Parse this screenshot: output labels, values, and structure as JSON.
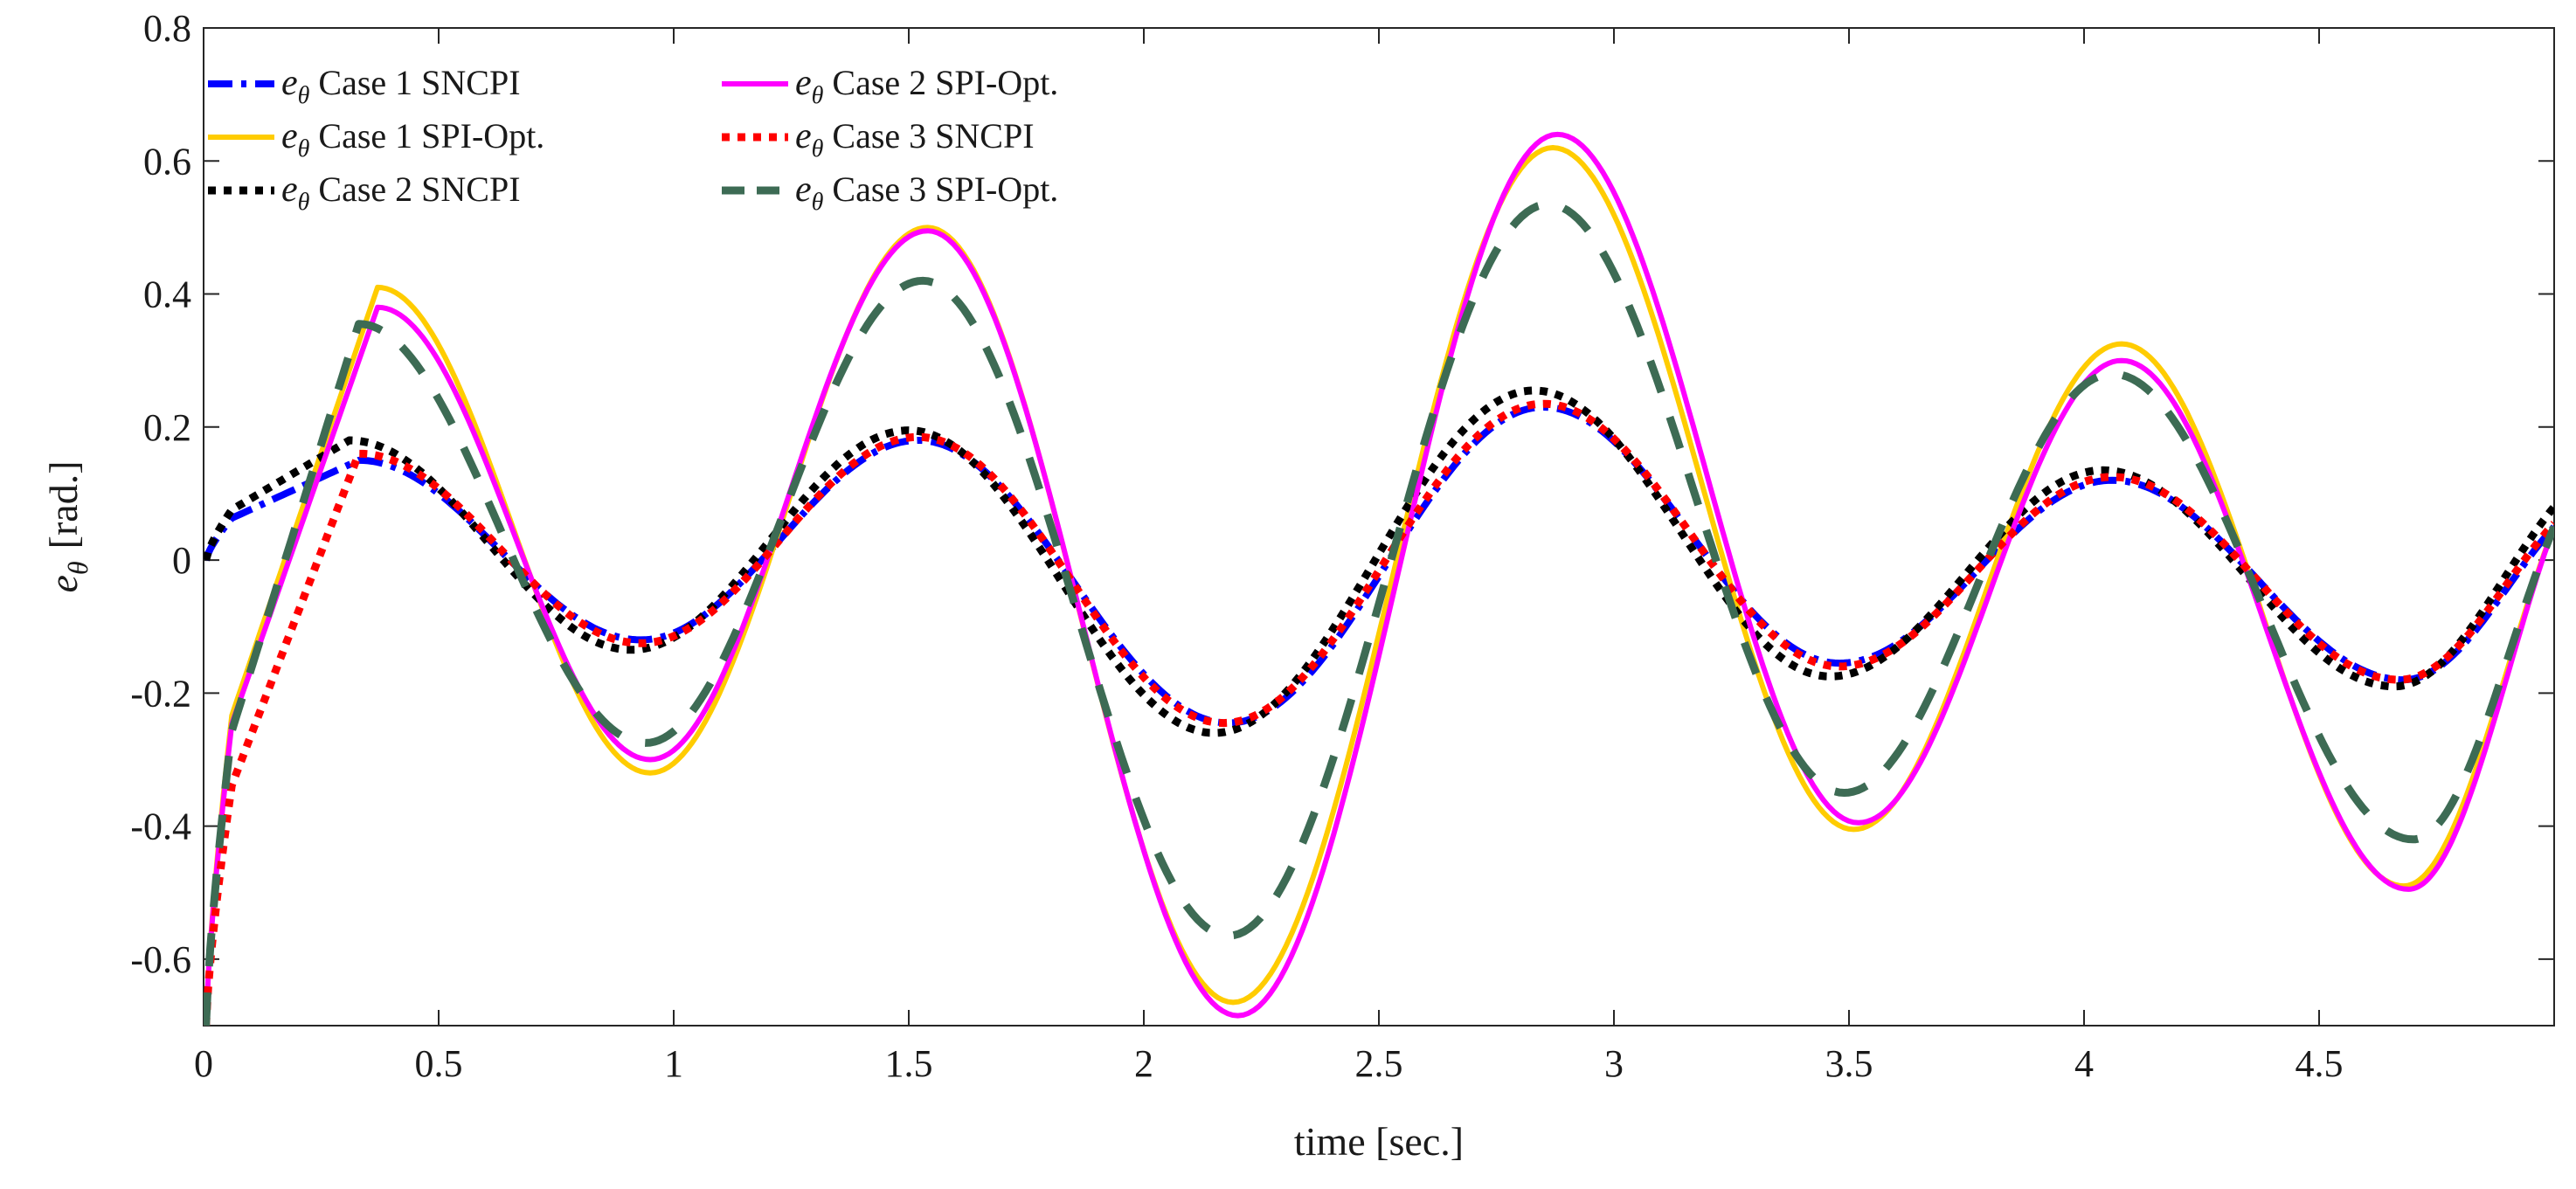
{
  "chart_data": {
    "type": "line",
    "title": "",
    "xlabel": "time  [sec.]",
    "ylabel": {
      "symbol": "e",
      "subscript": "θ",
      "unit": "[rad.]"
    },
    "xlim": [
      0,
      5
    ],
    "ylim": [
      -0.7,
      0.8
    ],
    "xticks": [
      0,
      0.5,
      1,
      1.5,
      2,
      2.5,
      3,
      3.5,
      4,
      4.5
    ],
    "xtick_labels": [
      "0",
      "0.5",
      "1",
      "1.5",
      "2",
      "2.5",
      "3",
      "3.5",
      "4",
      "4.5"
    ],
    "yticks": [
      -0.6,
      -0.4,
      -0.2,
      0,
      0.2,
      0.4,
      0.6,
      0.8
    ],
    "ytick_labels": [
      "-0.6",
      "-0.4",
      "-0.2",
      "0",
      "0.2",
      "0.4",
      "0.6",
      "0.8"
    ],
    "grid": false,
    "legend_position": "top-left",
    "legend_symbol": {
      "base": "e",
      "subscript": "θ"
    },
    "series": [
      {
        "name": "Case 1 SNCPI",
        "color": "#0000ff",
        "style": "dash-dot",
        "initial": 0.0,
        "points": [
          [
            0.33,
            0.15
          ],
          [
            0.93,
            -0.12
          ],
          [
            1.52,
            0.18
          ],
          [
            2.18,
            -0.245
          ],
          [
            2.85,
            0.23
          ],
          [
            3.48,
            -0.155
          ],
          [
            4.06,
            0.12
          ],
          [
            4.68,
            -0.18
          ],
          [
            5.0,
            0.05
          ]
        ]
      },
      {
        "name": "Case 1 SPI-Opt.",
        "color": "#ffcc00",
        "style": "solid",
        "initial": -0.7,
        "points": [
          [
            0.37,
            0.41
          ],
          [
            0.95,
            -0.32
          ],
          [
            1.54,
            0.5
          ],
          [
            2.19,
            -0.665
          ],
          [
            2.87,
            0.62
          ],
          [
            3.51,
            -0.405
          ],
          [
            4.08,
            0.325
          ],
          [
            4.68,
            -0.49
          ],
          [
            5.0,
            0.05
          ]
        ]
      },
      {
        "name": "Case 2 SNCPI",
        "color": "#000000",
        "style": "dotted",
        "initial": 0.0,
        "points": [
          [
            0.31,
            0.18
          ],
          [
            0.91,
            -0.135
          ],
          [
            1.5,
            0.195
          ],
          [
            2.15,
            -0.26
          ],
          [
            2.83,
            0.255
          ],
          [
            3.46,
            -0.175
          ],
          [
            4.04,
            0.135
          ],
          [
            4.66,
            -0.19
          ],
          [
            5.0,
            0.08
          ]
        ]
      },
      {
        "name": "Case 2 SPI-Opt.",
        "color": "#ff00ff",
        "style": "solid",
        "initial": -0.7,
        "points": [
          [
            0.37,
            0.38
          ],
          [
            0.95,
            -0.3
          ],
          [
            1.54,
            0.495
          ],
          [
            2.2,
            -0.685
          ],
          [
            2.88,
            0.64
          ],
          [
            3.52,
            -0.395
          ],
          [
            4.08,
            0.3
          ],
          [
            4.69,
            -0.495
          ],
          [
            5.0,
            0.05
          ]
        ]
      },
      {
        "name": "Case 3 SNCPI",
        "color": "#ff0000",
        "style": "dotted",
        "initial": -0.7,
        "points": [
          [
            0.33,
            0.16
          ],
          [
            0.93,
            -0.125
          ],
          [
            1.52,
            0.185
          ],
          [
            2.17,
            -0.245
          ],
          [
            2.85,
            0.235
          ],
          [
            3.48,
            -0.16
          ],
          [
            4.06,
            0.125
          ],
          [
            4.67,
            -0.18
          ],
          [
            5.0,
            0.055
          ]
        ]
      },
      {
        "name": "Case 3 SPI-Opt.",
        "color": "#3d6b54",
        "style": "dashed",
        "initial": -0.7,
        "points": [
          [
            0.33,
            0.355
          ],
          [
            0.94,
            -0.275
          ],
          [
            1.53,
            0.42
          ],
          [
            2.18,
            -0.565
          ],
          [
            2.86,
            0.535
          ],
          [
            3.49,
            -0.35
          ],
          [
            4.06,
            0.28
          ],
          [
            4.7,
            -0.42
          ],
          [
            5.0,
            0.05
          ]
        ]
      }
    ]
  }
}
